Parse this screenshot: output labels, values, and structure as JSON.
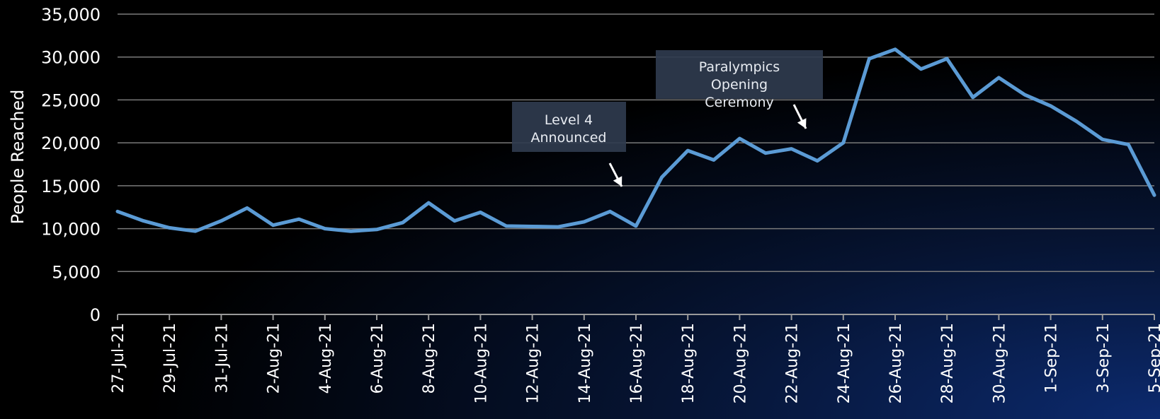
{
  "chart_data": {
    "type": "line",
    "ylabel": "People Reached",
    "ylim": [
      0,
      35000
    ],
    "yticks": [
      0,
      5000,
      10000,
      15000,
      20000,
      25000,
      30000,
      35000
    ],
    "ytick_labels": [
      "0",
      "5,000",
      "10,000",
      "15,000",
      "20,000",
      "25,000",
      "30,000",
      "35,000"
    ],
    "grid": true,
    "x": [
      "27-Jul-21",
      "28-Jul-21",
      "29-Jul-21",
      "30-Jul-21",
      "31-Jul-21",
      "1-Aug-21",
      "2-Aug-21",
      "3-Aug-21",
      "4-Aug-21",
      "5-Aug-21",
      "6-Aug-21",
      "7-Aug-21",
      "8-Aug-21",
      "9-Aug-21",
      "10-Aug-21",
      "11-Aug-21",
      "12-Aug-21",
      "13-Aug-21",
      "14-Aug-21",
      "15-Aug-21",
      "16-Aug-21",
      "17-Aug-21",
      "18-Aug-21",
      "19-Aug-21",
      "20-Aug-21",
      "21-Aug-21",
      "22-Aug-21",
      "23-Aug-21",
      "24-Aug-21",
      "25-Aug-21",
      "26-Aug-21",
      "27-Aug-21",
      "28-Aug-21",
      "29-Aug-21",
      "30-Aug-21",
      "31-Aug-21",
      "1-Sep-21",
      "2-Sep-21",
      "3-Sep-21",
      "4-Sep-21",
      "5-Sep-21"
    ],
    "x_tick_labels": [
      "27-Jul-21",
      "29-Jul-21",
      "31-Jul-21",
      "2-Aug-21",
      "4-Aug-21",
      "6-Aug-21",
      "8-Aug-21",
      "10-Aug-21",
      "12-Aug-21",
      "14-Aug-21",
      "16-Aug-21",
      "18-Aug-21",
      "20-Aug-21",
      "22-Aug-21",
      "24-Aug-21",
      "26-Aug-21",
      "28-Aug-21",
      "30-Aug-21",
      "1-Sep-21",
      "3-Sep-21",
      "5-Sep-21"
    ],
    "series": [
      {
        "values": [
          12000,
          10900,
          10100,
          9700,
          10900,
          12400,
          10400,
          11100,
          10000,
          9700,
          9900,
          10700,
          13000,
          10900,
          11900,
          10300,
          10250,
          10200,
          10800,
          12000,
          10300,
          16000,
          19100,
          18000,
          20500,
          18800,
          19300,
          17900,
          20000,
          29800,
          30900,
          28600,
          29800,
          25300,
          27600,
          25600,
          24300,
          22500,
          20400,
          19800,
          13900
        ],
        "color": "#5b9bd5"
      }
    ],
    "annotations": [
      {
        "lines": [
          "Level 4",
          "Announced"
        ],
        "target": "16-Aug-21"
      },
      {
        "lines": [
          "Paralympics",
          "Opening",
          "Ceremony"
        ],
        "target": "23-Aug-21"
      }
    ]
  }
}
